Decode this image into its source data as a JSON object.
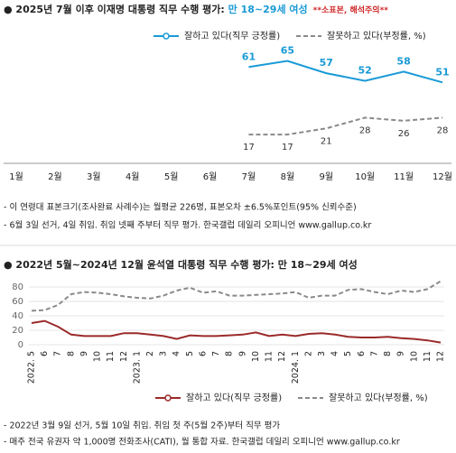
{
  "chart_data": [
    {
      "type": "line",
      "title": "● 2025년 7월 이후 이재명 대통령 직무 수행 평가: ",
      "subtitle": "만 18~29세 여성",
      "annotation": "**소표본, 해석주의**",
      "categories": [
        "1월",
        "2월",
        "3월",
        "4월",
        "5월",
        "6월",
        "7월",
        "8월",
        "9월",
        "10월",
        "11월",
        "12월"
      ],
      "series": [
        {
          "name": "잘하고 있다(직무 긍정률)",
          "color": "#1a9ad6",
          "dash": false,
          "values": [
            null,
            null,
            null,
            null,
            null,
            null,
            61,
            65,
            57,
            52,
            58,
            51
          ]
        },
        {
          "name": "잘못하고 있다(부정률, %)",
          "color": "#8a8a8a",
          "dash": true,
          "values": [
            null,
            null,
            null,
            null,
            null,
            null,
            17,
            17,
            21,
            28,
            26,
            28
          ]
        }
      ],
      "notes": [
        "- 이 연령대 표본크기(조사완료 사례수)는 월평균 226명, 표본오차 ±6.5%포인트(95% 신뢰수준)",
        "- 6월 3일 선거, 4일 취임. 취임 넷째 주부터 직무 평가. 한국갤럽 데일리 오피니언 www.gallup.co.kr"
      ]
    },
    {
      "type": "line",
      "title": "● 2022년 5월~2024년 12월 윤석열 대통령 직무 수행 평가: 만 18~29세 여성",
      "categories": [
        "2022. 5",
        "6",
        "7",
        "8",
        "9",
        "10",
        "11",
        "12",
        "2023. 1",
        "2",
        "3",
        "4",
        "5",
        "6",
        "7",
        "8",
        "9",
        "10",
        "11",
        "12",
        "2024. 1",
        "2",
        "3",
        "4",
        "5",
        "6",
        "7",
        "8",
        "9",
        "10",
        "11",
        "12"
      ],
      "ylim": [
        0,
        90
      ],
      "yticks": [
        0,
        20,
        40,
        60,
        80
      ],
      "grid": true,
      "series": [
        {
          "name": "잘하고 있다(직무 긍정률)",
          "color": "#9b2a2a",
          "dash": false,
          "values": [
            30,
            33,
            25,
            14,
            12,
            12,
            12,
            16,
            16,
            14,
            12,
            8,
            13,
            12,
            12,
            13,
            14,
            17,
            12,
            14,
            12,
            15,
            16,
            14,
            11,
            10,
            10,
            11,
            9,
            8,
            6,
            3
          ]
        },
        {
          "name": "잘못하고 있다(부정률, %)",
          "color": "#8a8a8a",
          "dash": true,
          "values": [
            47,
            48,
            55,
            70,
            73,
            72,
            70,
            67,
            65,
            64,
            68,
            75,
            79,
            72,
            74,
            68,
            68,
            69,
            70,
            71,
            73,
            65,
            68,
            68,
            76,
            77,
            73,
            70,
            75,
            73,
            77,
            88
          ]
        }
      ],
      "notes": [
        "- 2022년 3월 9일 선거, 5월 10일 취임. 취임 첫 주(5월 2주)부터 직무 평가",
        "- 매주 전국 유권자 약 1,000명 전화조사(CATI), 월 통합 자료. 한국갤럽 데일리 오피니언 www.gallup.co.kr"
      ]
    }
  ]
}
